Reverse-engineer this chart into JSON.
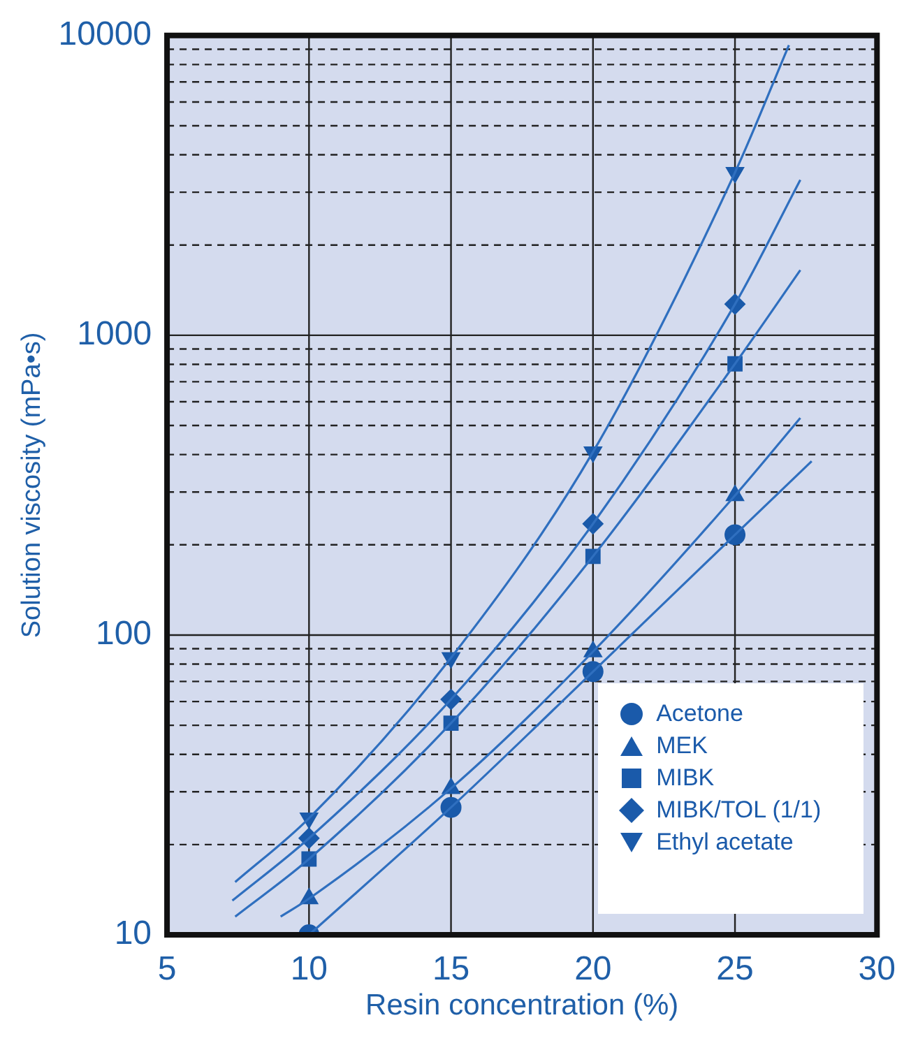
{
  "chart_data": {
    "type": "line",
    "xlabel": "Resin concentration (%)",
    "ylabel": "Solution viscosity (mPa•s)",
    "xlim": [
      5,
      30
    ],
    "xticks": [
      5,
      10,
      15,
      20,
      25,
      30
    ],
    "ylim": [
      10,
      10000
    ],
    "log": "y",
    "yticks": [
      10,
      {
        "value": 20,
        "label": null
      },
      {
        "value": 30,
        "label": null
      },
      {
        "value": 40,
        "label": null
      },
      {
        "value": 50,
        "label": null
      },
      {
        "value": 60,
        "label": null
      },
      {
        "value": 70,
        "label": null
      },
      {
        "value": 80,
        "label": null
      },
      {
        "value": 90,
        "label": null
      },
      100,
      {
        "value": 200,
        "label": null
      },
      {
        "value": 300,
        "label": null
      },
      {
        "value": 400,
        "label": null
      },
      {
        "value": 500,
        "label": null
      },
      {
        "value": 600,
        "label": null
      },
      {
        "value": 700,
        "label": null
      },
      {
        "value": 800,
        "label": null
      },
      {
        "value": 900,
        "label": null
      },
      1000,
      {
        "value": 2000,
        "label": null
      },
      {
        "value": 3000,
        "label": null
      },
      {
        "value": 4000,
        "label": null
      },
      {
        "value": 5000,
        "label": null
      },
      {
        "value": 6000,
        "label": null
      },
      {
        "value": 7000,
        "label": null
      },
      {
        "value": 8000,
        "label": null
      },
      {
        "value": 9000,
        "label": null
      },
      10000
    ],
    "grid": true,
    "legend": "bottom right",
    "series": [
      {
        "marker": "none",
        "color": "#2f6fbf",
        "x": [
          10,
          15,
          20,
          25,
          27.7
        ],
        "values": [
          10,
          26.6,
          75.5,
          216,
          380
        ]
      },
      {
        "marker": "none",
        "color": "#2f6fbf",
        "x": [
          9.0,
          10,
          15,
          20,
          25,
          27.3
        ],
        "values": [
          11.5,
          13.2,
          30.8,
          88,
          292,
          530
        ]
      },
      {
        "marker": "none",
        "color": "#2f6fbf",
        "x": [
          7.4,
          10,
          15,
          20,
          25,
          27.3
        ],
        "values": [
          11.5,
          17.9,
          50.8,
          183,
          803,
          1650
        ]
      },
      {
        "marker": "none",
        "color": "#2f6fbf",
        "x": [
          7.3,
          10,
          15,
          20,
          25,
          27.3
        ],
        "values": [
          13,
          21,
          61,
          235,
          1270,
          3300
        ]
      },
      {
        "marker": "none",
        "color": "#2f6fbf",
        "x": [
          7.4,
          10,
          15,
          20,
          25,
          26.9
        ],
        "values": [
          15,
          24.5,
          84,
          408,
          3490,
          9290
        ]
      },
      {
        "type": "scatter",
        "name": "Acetone",
        "marker": "circle",
        "color": "#1a5aaa",
        "x": [
          10,
          15,
          20,
          25
        ],
        "values": [
          10,
          26.6,
          75.5,
          216
        ]
      },
      {
        "type": "scatter",
        "name": "MEK",
        "marker": "triangle",
        "color": "#1a5aaa",
        "x": [
          10,
          15,
          20,
          25
        ],
        "values": [
          13.2,
          30.8,
          88,
          292
        ]
      },
      {
        "type": "scatter",
        "name": "MIBK",
        "marker": "square",
        "color": "#1a5aaa",
        "x": [
          10,
          15,
          20,
          25
        ],
        "values": [
          17.9,
          50.8,
          183,
          803
        ]
      },
      {
        "type": "scatter",
        "name": "MIBK/TOL (1/1)",
        "marker": "diamond",
        "color": "#1a5aaa",
        "x": [
          10,
          15,
          20,
          25
        ],
        "values": [
          21,
          61,
          235,
          1270
        ]
      },
      {
        "type": "scatter",
        "name": "Ethyl acetate",
        "marker": "triangle-down",
        "color": "#1a5aaa",
        "x": [
          10,
          15,
          20,
          25
        ],
        "values": [
          24.5,
          84,
          408,
          3490
        ]
      }
    ]
  }
}
